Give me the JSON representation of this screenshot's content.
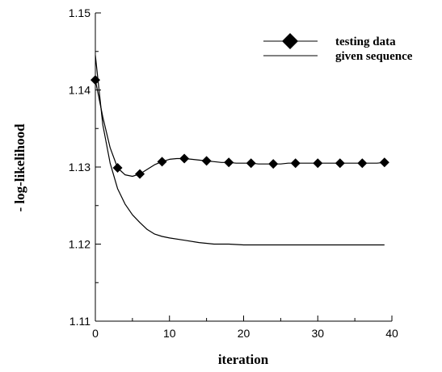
{
  "chart_data": {
    "type": "line",
    "title": "",
    "xlabel": "iteration",
    "ylabel": "- log-likelihood",
    "xlim": [
      0,
      40
    ],
    "ylim": [
      1.11,
      1.15
    ],
    "x_ticks": [
      0,
      10,
      20,
      30,
      40
    ],
    "x_tick_labels": [
      "0",
      "10",
      "20",
      "30",
      "40"
    ],
    "y_ticks": [
      1.11,
      1.12,
      1.13,
      1.14,
      1.15
    ],
    "y_tick_labels": [
      "1.11",
      "1.12",
      "1.13",
      "1.14",
      "1.15"
    ],
    "grid": false,
    "legend_position": "top-right",
    "series": [
      {
        "name": "testing data",
        "style": "line-with-diamond-markers",
        "color": "#000000",
        "x": [
          0,
          1,
          2,
          3,
          4,
          5,
          6,
          7,
          8,
          9,
          10,
          11,
          12,
          13,
          14,
          15,
          16,
          17,
          18,
          19,
          20,
          21,
          22,
          23,
          24,
          25,
          26,
          27,
          28,
          29,
          30,
          31,
          32,
          33,
          34,
          35,
          36,
          37,
          38,
          39
        ],
        "values": [
          1.1413,
          1.1365,
          1.1325,
          1.1299,
          1.129,
          1.1288,
          1.1291,
          1.1297,
          1.1303,
          1.1307,
          1.131,
          1.1311,
          1.1311,
          1.131,
          1.1309,
          1.1308,
          1.1307,
          1.1306,
          1.1306,
          1.1305,
          1.1305,
          1.1305,
          1.1304,
          1.1304,
          1.1304,
          1.1304,
          1.1305,
          1.1305,
          1.1305,
          1.1305,
          1.1305,
          1.1305,
          1.1305,
          1.1305,
          1.1305,
          1.1305,
          1.1305,
          1.1305,
          1.1305,
          1.1306
        ],
        "marker_x": [
          0,
          3,
          6,
          9,
          12,
          15,
          18,
          21,
          24,
          27,
          30,
          33,
          36,
          39
        ]
      },
      {
        "name": "given sequence",
        "style": "line",
        "color": "#000000",
        "x": [
          0,
          1,
          2,
          3,
          4,
          5,
          6,
          7,
          8,
          9,
          10,
          12,
          14,
          16,
          18,
          20,
          22,
          24,
          26,
          28,
          30,
          32,
          34,
          36,
          39
        ],
        "values": [
          1.1445,
          1.1355,
          1.1305,
          1.1272,
          1.1252,
          1.1238,
          1.1228,
          1.1219,
          1.1213,
          1.121,
          1.1208,
          1.1205,
          1.1202,
          1.12,
          1.12,
          1.1199,
          1.1199,
          1.1199,
          1.1199,
          1.1199,
          1.1199,
          1.1199,
          1.1199,
          1.1199,
          1.1199
        ]
      }
    ]
  }
}
